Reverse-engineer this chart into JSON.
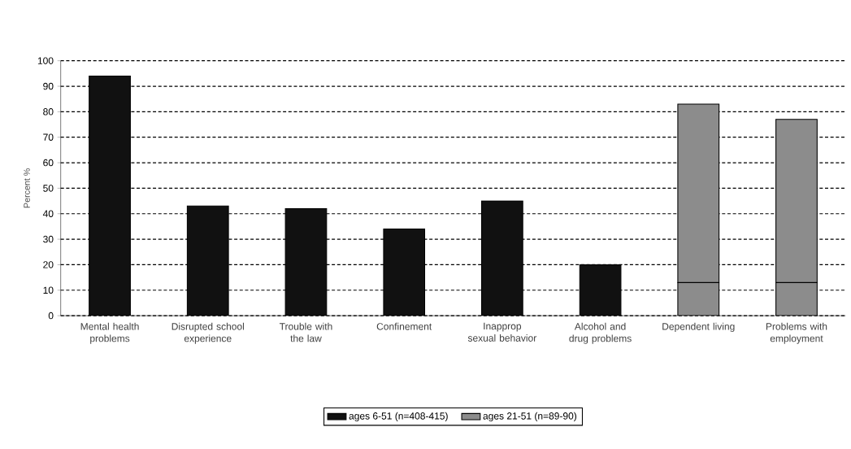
{
  "chart_data": {
    "type": "bar",
    "stacked": true,
    "ylabel": "Percent %",
    "categories": [
      "Mental health problems",
      "Disrupted school experience",
      "Trouble with the law",
      "Confinement",
      "Inapprop sexual behavior",
      "Alcohol and drug problems",
      "Dependent living",
      "Problems with employment"
    ],
    "series": [
      {
        "name": "ages 6-51 (n=408-415)",
        "color": "#111111",
        "values": [
          94,
          43,
          42,
          34,
          45,
          20,
          null,
          null
        ]
      },
      {
        "name": "ages 21-51 (n=89-90)",
        "color": "#8c8c8c",
        "values": [
          null,
          null,
          null,
          null,
          null,
          null,
          13,
          13
        ]
      },
      {
        "color": "#8c8c8c",
        "values": [
          null,
          null,
          null,
          null,
          null,
          null,
          70,
          64
        ]
      }
    ],
    "ylim": [
      0,
      100
    ],
    "yticks": [
      0,
      10,
      20,
      30,
      40,
      50,
      60,
      70,
      80,
      90,
      100
    ],
    "grid": "y",
    "legend": "bottom"
  }
}
